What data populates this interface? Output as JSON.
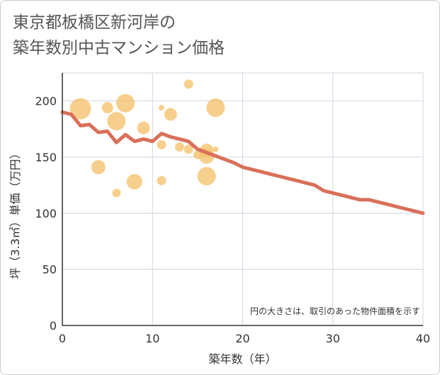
{
  "title_line1": "東京都板橋区新河岸の",
  "title_line2": "築年数別中古マンション価格",
  "chart_data": {
    "type": "scatter",
    "title": "東京都板橋区新河岸の築年数別中古マンション価格",
    "xlabel": "築年数（年）",
    "ylabel": "坪（3.3㎡）単価（万円）",
    "xlim": [
      0,
      40
    ],
    "ylim": [
      0,
      225
    ],
    "xticks": [
      0,
      10,
      20,
      30,
      40
    ],
    "yticks": [
      0,
      50,
      100,
      150,
      200
    ],
    "grid": true,
    "note": "円の大きさは、取引のあった物件面積を示す",
    "bubble_color": "#f5c16c",
    "line_color": "#d9705a",
    "bubbles": [
      {
        "x": 2,
        "y": 193,
        "size": 3.0
      },
      {
        "x": 4,
        "y": 141,
        "size": 2.0
      },
      {
        "x": 5,
        "y": 194,
        "size": 1.6
      },
      {
        "x": 6,
        "y": 118,
        "size": 1.2
      },
      {
        "x": 6,
        "y": 182,
        "size": 2.6
      },
      {
        "x": 7,
        "y": 198,
        "size": 2.6
      },
      {
        "x": 8,
        "y": 128,
        "size": 2.2
      },
      {
        "x": 9,
        "y": 176,
        "size": 1.8
      },
      {
        "x": 11,
        "y": 194,
        "size": 0.8
      },
      {
        "x": 11,
        "y": 161,
        "size": 1.3
      },
      {
        "x": 11,
        "y": 129,
        "size": 1.3
      },
      {
        "x": 12,
        "y": 188,
        "size": 1.8
      },
      {
        "x": 13,
        "y": 159,
        "size": 1.3
      },
      {
        "x": 14,
        "y": 215,
        "size": 1.3
      },
      {
        "x": 14,
        "y": 157,
        "size": 1.3
      },
      {
        "x": 15,
        "y": 152,
        "size": 1.2
      },
      {
        "x": 16,
        "y": 156,
        "size": 1.9
      },
      {
        "x": 16,
        "y": 151,
        "size": 2.2
      },
      {
        "x": 16,
        "y": 133,
        "size": 2.6
      },
      {
        "x": 17,
        "y": 194,
        "size": 2.6
      },
      {
        "x": 17,
        "y": 157,
        "size": 0.8
      }
    ],
    "trend": {
      "x": [
        0,
        1,
        2,
        3,
        4,
        5,
        6,
        7,
        8,
        9,
        10,
        11,
        12,
        13,
        14,
        15,
        16,
        17,
        18,
        19,
        20,
        22,
        24,
        26,
        28,
        29,
        31,
        33,
        34,
        36,
        38,
        40
      ],
      "y": [
        190,
        188,
        178,
        179,
        172,
        173,
        163,
        170,
        164,
        166,
        164,
        171,
        168,
        166,
        164,
        157,
        154,
        151,
        148,
        145,
        141,
        137,
        133,
        129,
        125,
        120,
        116,
        112,
        112,
        108,
        104,
        100
      ]
    }
  }
}
